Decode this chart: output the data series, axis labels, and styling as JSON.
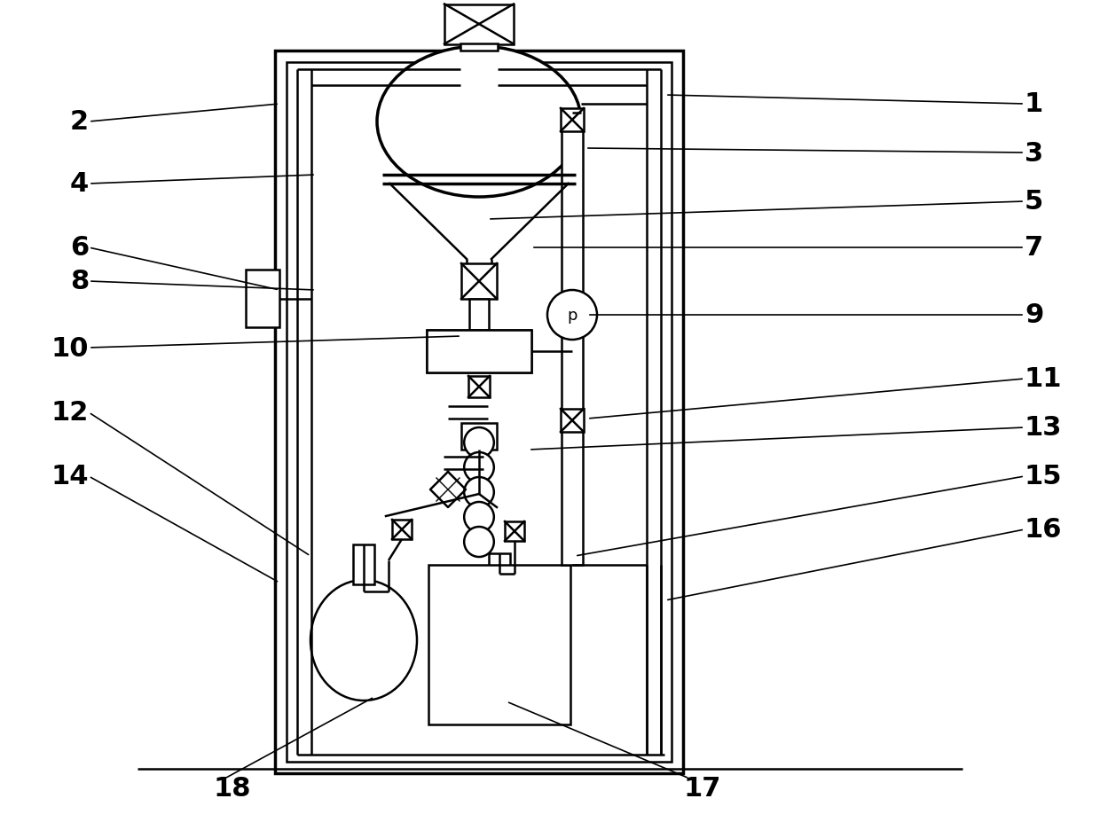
{
  "bg_color": "#ffffff",
  "line_color": "#000000",
  "lw": 1.8,
  "lw_thick": 2.5,
  "font_size": 22,
  "font_weight": "bold",
  "fig_w": 12.4,
  "fig_h": 9.28,
  "dpi": 100
}
